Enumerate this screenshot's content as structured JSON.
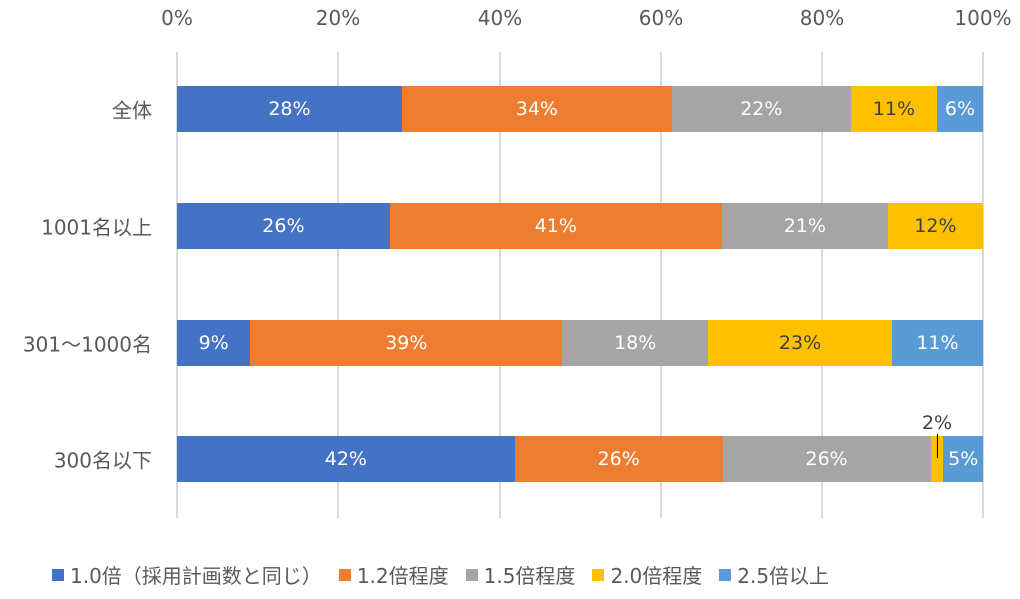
{
  "chart_data": {
    "type": "bar",
    "orientation": "horizontal",
    "stacked": "percent",
    "title": "",
    "xlabel": "",
    "ylabel": "",
    "xlim": [
      0,
      100
    ],
    "x_ticks": [
      "0%",
      "20%",
      "40%",
      "60%",
      "80%",
      "100%"
    ],
    "x_axis_position": "top",
    "grid": true,
    "legend_position": "bottom",
    "categories": [
      "全体",
      "1001名以上",
      "301〜1000名",
      "300名以下"
    ],
    "series": [
      {
        "name": "1.0倍（採用計画数と同じ）",
        "color": "#4472C4",
        "values": [
          28,
          26,
          9,
          42
        ],
        "labels": [
          "28%",
          "26%",
          "9%",
          "42%"
        ]
      },
      {
        "name": "1.2倍程度",
        "color": "#ED7D31",
        "values": [
          34,
          41,
          39,
          26
        ],
        "labels": [
          "34%",
          "41%",
          "39%",
          "26%"
        ]
      },
      {
        "name": "1.5倍程度",
        "color": "#A5A5A5",
        "values": [
          22,
          21,
          18,
          26
        ],
        "labels": [
          "22%",
          "21%",
          "18%",
          "26%"
        ]
      },
      {
        "name": "2.0倍程度",
        "color": "#FFC000",
        "values": [
          11,
          12,
          23,
          2
        ],
        "labels": [
          "11%",
          "12%",
          "23%",
          "2%"
        ]
      },
      {
        "name": "2.5倍以上",
        "color": "#5B9BD5",
        "values": [
          6,
          0,
          11,
          5
        ],
        "labels": [
          "6%",
          "",
          "11%",
          "5%"
        ]
      }
    ],
    "bars": [
      {
        "category": "全体",
        "segments": [
          {
            "series": 0,
            "width_pct": 27.9,
            "label": "28%"
          },
          {
            "series": 1,
            "width_pct": 33.5,
            "label": "34%"
          },
          {
            "series": 2,
            "width_pct": 22.2,
            "label": "22%"
          },
          {
            "series": 3,
            "width_pct": 10.7,
            "label": "11%"
          },
          {
            "series": 4,
            "width_pct": 5.7,
            "label": "6%"
          }
        ]
      },
      {
        "category": "1001名以上",
        "segments": [
          {
            "series": 0,
            "width_pct": 26.4,
            "label": "26%"
          },
          {
            "series": 1,
            "width_pct": 41.2,
            "label": "41%"
          },
          {
            "series": 2,
            "width_pct": 20.6,
            "label": "21%"
          },
          {
            "series": 3,
            "width_pct": 11.8,
            "label": "12%"
          }
        ]
      },
      {
        "category": "301〜1000名",
        "segments": [
          {
            "series": 0,
            "width_pct": 9.1,
            "label": "9%"
          },
          {
            "series": 1,
            "width_pct": 38.7,
            "label": "39%"
          },
          {
            "series": 2,
            "width_pct": 18.1,
            "label": "18%"
          },
          {
            "series": 3,
            "width_pct": 22.8,
            "label": "23%"
          },
          {
            "series": 4,
            "width_pct": 11.3,
            "label": "11%"
          }
        ]
      },
      {
        "category": "300名以下",
        "segments": [
          {
            "series": 0,
            "width_pct": 41.9,
            "label": "42%"
          },
          {
            "series": 1,
            "width_pct": 25.8,
            "label": "26%"
          },
          {
            "series": 2,
            "width_pct": 25.8,
            "label": "26%"
          },
          {
            "series": 3,
            "width_pct": 1.6,
            "label": "2%",
            "callout": true
          },
          {
            "series": 4,
            "width_pct": 4.9,
            "label": "5%"
          }
        ]
      }
    ]
  },
  "axis": {
    "ticks": [
      "0%",
      "20%",
      "40%",
      "60%",
      "80%",
      "100%"
    ]
  },
  "rows": [
    {
      "label": "全体"
    },
    {
      "label": "1001名以上"
    },
    {
      "label": "301〜1000名"
    },
    {
      "label": "300名以下"
    }
  ],
  "legend": [
    {
      "label": "1.0倍（採用計画数と同じ）",
      "color": "#4472C4"
    },
    {
      "label": "1.2倍程度",
      "color": "#ED7D31"
    },
    {
      "label": "1.5倍程度",
      "color": "#A5A5A5"
    },
    {
      "label": "2.0倍程度",
      "color": "#FFC000"
    },
    {
      "label": "2.5倍以上",
      "color": "#5B9BD5"
    }
  ]
}
